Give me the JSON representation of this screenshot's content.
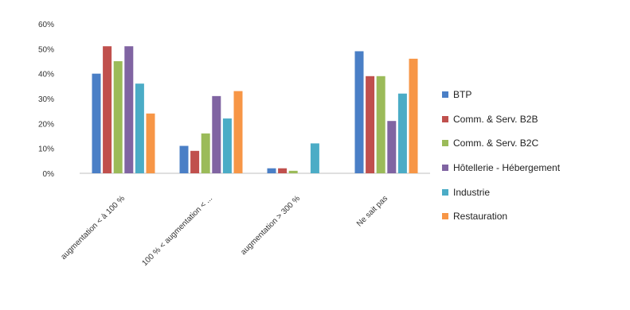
{
  "chart_data": {
    "type": "bar",
    "title": "",
    "xlabel": "",
    "ylabel": "",
    "ylim": [
      0,
      60
    ],
    "ytick_values": [
      0,
      10,
      20,
      30,
      40,
      50,
      60
    ],
    "ytick_labels": [
      "0%",
      "10%",
      "20%",
      "30%",
      "40%",
      "50%",
      "60%"
    ],
    "grid": false,
    "legend_position": "right",
    "categories": [
      "augmentation < à 100 %",
      "100 % < augmentation < ...",
      "augmentation > 300 %",
      "Ne sait pas"
    ],
    "series": [
      {
        "name": "BTP",
        "color": "#4a7fc6",
        "values": [
          40,
          11,
          2,
          49
        ]
      },
      {
        "name": "Comm. & Serv. B2B",
        "color": "#c0504d",
        "values": [
          51,
          9,
          2,
          39
        ]
      },
      {
        "name": "Comm. & Serv. B2C",
        "color": "#9bbb59",
        "values": [
          45,
          16,
          1,
          39
        ]
      },
      {
        "name": "Hôtellerie - Hébergement",
        "color": "#8064a2",
        "values": [
          51,
          31,
          0,
          21
        ]
      },
      {
        "name": "Industrie",
        "color": "#4bacc6",
        "values": [
          36,
          22,
          12,
          32
        ]
      },
      {
        "name": "Restauration",
        "color": "#f79646",
        "values": [
          24,
          33,
          0,
          46
        ]
      }
    ]
  }
}
